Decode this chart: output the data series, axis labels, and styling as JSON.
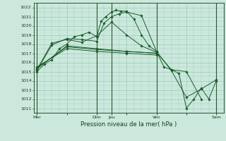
{
  "background_color": "#cce8dc",
  "grid_color": "#99ccbb",
  "line_color": "#1a5c2a",
  "marker_color": "#1a5c2a",
  "xlabel": "Pression niveau de la mer( hPa )",
  "ylim": [
    1010.5,
    1022.5
  ],
  "yticks": [
    1011,
    1012,
    1013,
    1014,
    1015,
    1016,
    1017,
    1018,
    1019,
    1020,
    1021,
    1022
  ],
  "xtick_labels": [
    "Mer",
    "",
    "Dim",
    "Jeu",
    "",
    "Ven",
    "",
    "Sam"
  ],
  "xtick_positions": [
    0,
    2,
    4,
    5,
    6,
    8,
    10,
    12
  ],
  "vlines": [
    0,
    4,
    5,
    8,
    12
  ],
  "series": [
    {
      "x": [
        0,
        0.5,
        1,
        1.5,
        2,
        2.5,
        3,
        3.5,
        4,
        4.3,
        4.6,
        5.0,
        5.3,
        5.6,
        6,
        6.5,
        7,
        7.5,
        8,
        8.5,
        9,
        9.5,
        10,
        10.5,
        11,
        11.5,
        12
      ],
      "y": [
        1015.0,
        1015.8,
        1016.3,
        1017.5,
        1018.0,
        1018.8,
        1019.0,
        1019.3,
        1018.8,
        1020.5,
        1021.0,
        1021.5,
        1021.7,
        1021.6,
        1021.6,
        1020.7,
        1019.0,
        1017.8,
        1017.2,
        1015.5,
        1015.2,
        1014.8,
        1011.0,
        1012.0,
        1013.2,
        1012.0,
        1014.0
      ]
    },
    {
      "x": [
        0,
        1,
        2,
        3,
        4,
        4.5,
        5,
        5.5,
        6,
        7,
        8,
        9,
        10,
        11,
        12
      ],
      "y": [
        1015.1,
        1017.9,
        1018.6,
        1018.5,
        1018.3,
        1020.3,
        1021.0,
        1021.3,
        1021.5,
        1021.1,
        1017.2,
        1015.1,
        1012.2,
        1013.1,
        1014.1
      ]
    },
    {
      "x": [
        0,
        1,
        2,
        3,
        4,
        5,
        6,
        7,
        8,
        9,
        10,
        11
      ],
      "y": [
        1015.2,
        1018.1,
        1018.5,
        1018.2,
        1018.9,
        1020.4,
        1019.0,
        1017.8,
        1017.1,
        1015.2,
        1015.0,
        1012.0
      ]
    },
    {
      "x": [
        0,
        2,
        4,
        6,
        8
      ],
      "y": [
        1015.3,
        1017.8,
        1017.5,
        1017.2,
        1017.0
      ]
    },
    {
      "x": [
        0,
        2,
        4,
        6,
        8
      ],
      "y": [
        1015.4,
        1017.7,
        1017.4,
        1017.2,
        1017.0
      ]
    },
    {
      "x": [
        0,
        2,
        4,
        6,
        8
      ],
      "y": [
        1015.5,
        1017.5,
        1017.2,
        1017.0,
        1016.8
      ]
    }
  ]
}
